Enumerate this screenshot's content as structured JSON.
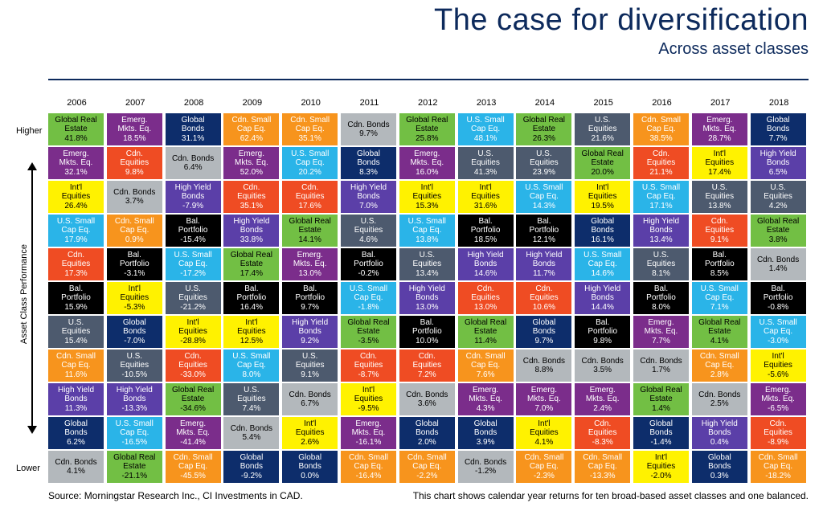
{
  "title": "The case for diversification",
  "subtitle": "Across asset classes",
  "axis": {
    "higher": "Higher",
    "lower": "Lower",
    "title": "Asset Class Performance"
  },
  "source": "Source:  Morningstar Research Inc., CI Investments in CAD.",
  "note": "This chart shows calendar year returns for ten broad-based asset classes and one balanced.",
  "colors": {
    "Global Real Estate": "#72bf44",
    "Emerg. Mkts. Eq.": "#7b2d8b",
    "Int'l Equities": "#fff200",
    "U.S. Small Cap Eq.": "#2ab4e8",
    "Cdn. Equities": "#ef4c23",
    "Bal. Portfolio": "#000000",
    "U.S. Equities": "#4d5a6e",
    "Cdn. Small Cap Eq.": "#f7941d",
    "High Yield Bonds": "#5b3fa8",
    "Global Bonds": "#0d2d6b",
    "Cdn. Bonds": "#b3b8bc"
  },
  "text_colors": {
    "Global Real Estate": "#000000",
    "Int'l Equities": "#000000",
    "Cdn. Bonds": "#000000",
    "default": "#ffffff"
  },
  "labels": {
    "Global Real Estate": [
      "Global Real",
      "Estate"
    ],
    "Emerg. Mkts. Eq.": [
      "Emerg.",
      "Mkts. Eq."
    ],
    "Int'l Equities": [
      "Int'l",
      "Equities"
    ],
    "U.S. Small Cap Eq.": [
      "U.S. Small",
      "Cap Eq."
    ],
    "Cdn. Equities": [
      "Cdn.",
      "Equities"
    ],
    "Bal. Portfolio": [
      "Bal.",
      "Portfolio"
    ],
    "U.S. Equities": [
      "U.S.",
      "Equities"
    ],
    "Cdn. Small Cap Eq.": [
      "Cdn. Small",
      "Cap Eq."
    ],
    "High Yield Bonds": [
      "High Yield",
      "Bonds"
    ],
    "Global Bonds": [
      "Global",
      "Bonds"
    ],
    "Cdn. Bonds": [
      "Cdn. Bonds"
    ]
  },
  "chart_data": {
    "type": "table",
    "title": "The case for diversification",
    "subtitle": "Across asset classes",
    "ylabel": "Asset Class Performance",
    "years": [
      "2006",
      "2007",
      "2008",
      "2009",
      "2010",
      "2011",
      "2012",
      "2013",
      "2014",
      "2015",
      "2016",
      "2017",
      "2018"
    ],
    "columns": [
      [
        [
          "Global Real Estate",
          "41.8%"
        ],
        [
          "Emerg. Mkts. Eq.",
          "32.1%"
        ],
        [
          "Int'l Equities",
          "26.4%"
        ],
        [
          "U.S. Small Cap Eq.",
          "17.9%"
        ],
        [
          "Cdn. Equities",
          "17.3%"
        ],
        [
          "Bal. Portfolio",
          "15.9%"
        ],
        [
          "U.S. Equities",
          "15.4%"
        ],
        [
          "Cdn. Small Cap Eq.",
          "11.6%"
        ],
        [
          "High Yield Bonds",
          "11.3%"
        ],
        [
          "Global Bonds",
          "6.2%"
        ],
        [
          "Cdn. Bonds",
          "4.1%"
        ]
      ],
      [
        [
          "Emerg. Mkts. Eq.",
          "18.5%"
        ],
        [
          "Cdn. Equities",
          "9.8%"
        ],
        [
          "Cdn. Bonds",
          "3.7%"
        ],
        [
          "Cdn. Small Cap Eq.",
          "0.9%"
        ],
        [
          "Bal. Portfolio",
          "-3.1%"
        ],
        [
          "Int'l Equities",
          "-5.3%"
        ],
        [
          "Global Bonds",
          "-7.0%"
        ],
        [
          "U.S. Equities",
          "-10.5%"
        ],
        [
          "High Yield Bonds",
          "-13.3%"
        ],
        [
          "U.S. Small Cap Eq.",
          "-16.5%"
        ],
        [
          "Global Real Estate",
          "-21.1%"
        ]
      ],
      [
        [
          "Global Bonds",
          "31.1%"
        ],
        [
          "Cdn. Bonds",
          "6.4%"
        ],
        [
          "High Yield Bonds",
          "-7.9%"
        ],
        [
          "Bal. Portfolio",
          "-15.4%"
        ],
        [
          "U.S. Small Cap Eq.",
          "-17.2%"
        ],
        [
          "U.S. Equities",
          "-21.2%"
        ],
        [
          "Int'l Equities",
          "-28.8%"
        ],
        [
          "Cdn. Equities",
          "-33.0%"
        ],
        [
          "Global Real Estate",
          "-34.6%"
        ],
        [
          "Emerg. Mkts. Eq.",
          "-41.4%"
        ],
        [
          "Cdn. Small Cap Eq.",
          "-45.5%"
        ]
      ],
      [
        [
          "Cdn. Small Cap Eq.",
          "62.4%"
        ],
        [
          "Emerg. Mkts. Eq.",
          "52.0%"
        ],
        [
          "Cdn. Equities",
          "35.1%"
        ],
        [
          "High Yield Bonds",
          "33.8%"
        ],
        [
          "Global Real Estate",
          "17.4%"
        ],
        [
          "Bal. Portfolio",
          "16.4%"
        ],
        [
          "Int'l Equities",
          "12.5%"
        ],
        [
          "U.S. Small Cap Eq.",
          "8.0%"
        ],
        [
          "U.S. Equities",
          "7.4%"
        ],
        [
          "Cdn. Bonds",
          "5.4%"
        ],
        [
          "Global Bonds",
          "-9.2%"
        ]
      ],
      [
        [
          "Cdn. Small Cap Eq.",
          "35.1%"
        ],
        [
          "U.S. Small Cap Eq.",
          "20.2%"
        ],
        [
          "Cdn. Equities",
          "17.6%"
        ],
        [
          "Global Real Estate",
          "14.1%"
        ],
        [
          "Emerg. Mkts. Eq.",
          "13.0%"
        ],
        [
          "Bal. Portfolio",
          "9.7%"
        ],
        [
          "High Yield Bonds",
          "9.2%"
        ],
        [
          "U.S. Equities",
          "9.1%"
        ],
        [
          "Cdn. Bonds",
          "6.7%"
        ],
        [
          "Int'l Equities",
          "2.6%"
        ],
        [
          "Global Bonds",
          "0.0%"
        ]
      ],
      [
        [
          "Cdn. Bonds",
          "9.7%"
        ],
        [
          "Global Bonds",
          "8.3%"
        ],
        [
          "High Yield Bonds",
          "7.0%"
        ],
        [
          "U.S. Equities",
          "4.6%"
        ],
        [
          "Bal. Portfolio",
          "-0.2%"
        ],
        [
          "U.S. Small Cap Eq.",
          "-1.8%"
        ],
        [
          "Global Real Estate",
          "-3.5%"
        ],
        [
          "Cdn. Equities",
          "-8.7%"
        ],
        [
          "Int'l Equities",
          "-9.5%"
        ],
        [
          "Emerg. Mkts. Eq.",
          "-16.1%"
        ],
        [
          "Cdn. Small Cap Eq.",
          "-16.4%"
        ]
      ],
      [
        [
          "Global Real Estate",
          "25.8%"
        ],
        [
          "Emerg. Mkts. Eq.",
          "16.0%"
        ],
        [
          "Int'l Equities",
          "15.3%"
        ],
        [
          "U.S. Small Cap Eq.",
          "13.8%"
        ],
        [
          "U.S. Equities",
          "13.4%"
        ],
        [
          "High Yield Bonds",
          "13.0%"
        ],
        [
          "Bal. Portfolio",
          "10.0%"
        ],
        [
          "Cdn. Equities",
          "7.2%"
        ],
        [
          "Cdn. Bonds",
          "3.6%"
        ],
        [
          "Global Bonds",
          "2.0%"
        ],
        [
          "Cdn. Small Cap Eq.",
          "-2.2%"
        ]
      ],
      [
        [
          "U.S. Small Cap Eq.",
          "48.1%"
        ],
        [
          "U.S. Equities",
          "41.3%"
        ],
        [
          "Int'l Equities",
          "31.6%"
        ],
        [
          "Bal. Portfolio",
          "18.5%"
        ],
        [
          "High Yield Bonds",
          "14.6%"
        ],
        [
          "Cdn. Equities",
          "13.0%"
        ],
        [
          "Global Real Estate",
          "11.4%"
        ],
        [
          "Cdn. Small Cap Eq.",
          "7.6%"
        ],
        [
          "Emerg. Mkts. Eq.",
          "4.3%"
        ],
        [
          "Global Bonds",
          "3.9%"
        ],
        [
          "Cdn. Bonds",
          "-1.2%"
        ]
      ],
      [
        [
          "Global Real Estate",
          "26.3%"
        ],
        [
          "U.S. Equities",
          "23.9%"
        ],
        [
          "U.S. Small Cap Eq.",
          "14.3%"
        ],
        [
          "Bal. Portfolio",
          "12.1%"
        ],
        [
          "High Yield Bonds",
          "11.7%"
        ],
        [
          "Cdn. Equities",
          "10.6%"
        ],
        [
          "Global Bonds",
          "9.7%"
        ],
        [
          "Cdn. Bonds",
          "8.8%"
        ],
        [
          "Emerg. Mkts. Eq.",
          "7.0%"
        ],
        [
          "Int'l Equities",
          "4.1%"
        ],
        [
          "Cdn. Small Cap Eq.",
          "-2.3%"
        ]
      ],
      [
        [
          "U.S. Equities",
          "21.6%"
        ],
        [
          "Global Real Estate",
          "20.0%"
        ],
        [
          "Int'l Equities",
          "19.5%"
        ],
        [
          "Global Bonds",
          "16.1%"
        ],
        [
          "U.S. Small Cap Eq.",
          "14.6%"
        ],
        [
          "High Yield Bonds",
          "14.4%"
        ],
        [
          "Bal. Portfolio",
          "9.8%"
        ],
        [
          "Cdn. Bonds",
          "3.5%"
        ],
        [
          "Emerg. Mkts. Eq.",
          "2.4%"
        ],
        [
          "Cdn. Equities",
          "-8.3%"
        ],
        [
          "Cdn. Small Cap Eq.",
          "-13.3%"
        ]
      ],
      [
        [
          "Cdn. Small Cap Eq.",
          "38.5%"
        ],
        [
          "Cdn. Equities",
          "21.1%"
        ],
        [
          "U.S. Small Cap Eq.",
          "17.1%"
        ],
        [
          "High Yield Bonds",
          "13.4%"
        ],
        [
          "U.S. Equities",
          "8.1%"
        ],
        [
          "Bal. Portfolio",
          "8.0%"
        ],
        [
          "Emerg. Mkts. Eq.",
          "7.7%"
        ],
        [
          "Cdn. Bonds",
          "1.7%"
        ],
        [
          "Global Real Estate",
          "1.4%"
        ],
        [
          "Global Bonds",
          "-1.4%"
        ],
        [
          "Int'l Equities",
          "-2.0%"
        ]
      ],
      [
        [
          "Emerg. Mkts. Eq.",
          "28.7%"
        ],
        [
          "Int'l Equities",
          "17.4%"
        ],
        [
          "U.S. Equities",
          "13.8%"
        ],
        [
          "Cdn. Equities",
          "9.1%"
        ],
        [
          "Bal. Portfolio",
          "8.5%"
        ],
        [
          "U.S. Small Cap Eq.",
          "7.1%"
        ],
        [
          "Global Real Estate",
          "4.1%"
        ],
        [
          "Cdn. Small Cap Eq.",
          "2.8%"
        ],
        [
          "Cdn. Bonds",
          "2.5%"
        ],
        [
          "High Yield Bonds",
          "0.4%"
        ],
        [
          "Global Bonds",
          "0.3%"
        ]
      ],
      [
        [
          "Global Bonds",
          "7.7%"
        ],
        [
          "High Yield Bonds",
          "6.5%"
        ],
        [
          "U.S. Equities",
          "4.2%"
        ],
        [
          "Global Real Estate",
          "3.8%"
        ],
        [
          "Cdn. Bonds",
          "1.4%"
        ],
        [
          "Bal. Portfolio",
          "-0.8%"
        ],
        [
          "U.S. Small Cap Eq.",
          "-3.0%"
        ],
        [
          "Int'l Equities",
          "-5.6%"
        ],
        [
          "Emerg. Mkts. Eq.",
          "-6.5%"
        ],
        [
          "Cdn. Equities",
          "-8.9%"
        ],
        [
          "Cdn. Small Cap Eq.",
          "-18.2%"
        ]
      ]
    ]
  }
}
